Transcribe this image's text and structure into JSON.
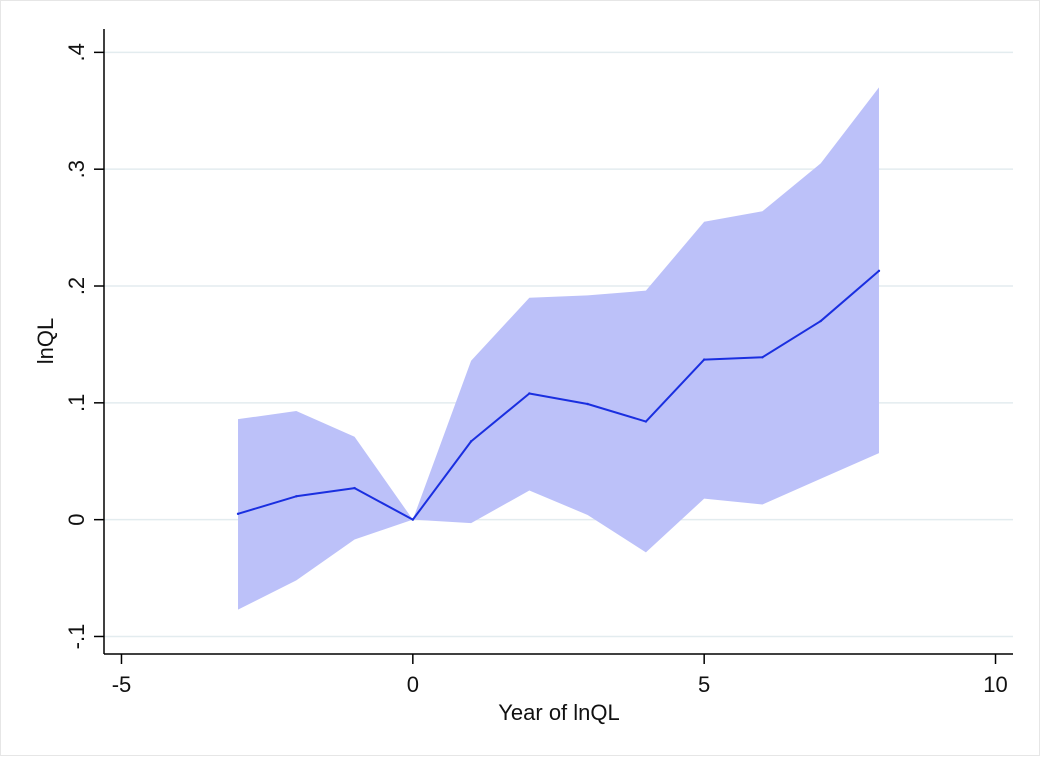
{
  "chart_data": {
    "type": "line",
    "title": "",
    "xlabel": "Year of lnQL",
    "ylabel": "lnQL",
    "xlim": [
      -5.3,
      10.3
    ],
    "ylim": [
      -0.115,
      0.42
    ],
    "x_ticks": [
      -5,
      0,
      5,
      10
    ],
    "x_tick_labels": [
      "-5",
      "0",
      "5",
      "10"
    ],
    "y_ticks": [
      -0.1,
      0,
      0.1,
      0.2,
      0.3,
      0.4
    ],
    "y_tick_labels": [
      "-.1",
      "0",
      ".1",
      ".2",
      ".3",
      ".4"
    ],
    "grid": "horizontal",
    "legend": "none",
    "x": [
      -3,
      -2,
      -1,
      0,
      1,
      2,
      3,
      4,
      5,
      6,
      7,
      8
    ],
    "series": [
      {
        "kind": "line",
        "values": [
          0.005,
          0.02,
          0.027,
          0.0,
          0.067,
          0.108,
          0.099,
          0.084,
          0.137,
          0.139,
          0.17,
          0.213
        ],
        "color": "#1a2fe0"
      },
      {
        "kind": "band",
        "lower": [
          -0.077,
          -0.052,
          -0.017,
          0.0,
          -0.003,
          0.025,
          0.004,
          -0.028,
          0.018,
          0.013,
          0.035,
          0.057
        ],
        "upper": [
          0.086,
          0.093,
          0.071,
          0.0,
          0.136,
          0.19,
          0.192,
          0.196,
          0.255,
          0.264,
          0.305,
          0.37
        ],
        "color": "#bcc1f9"
      }
    ]
  }
}
